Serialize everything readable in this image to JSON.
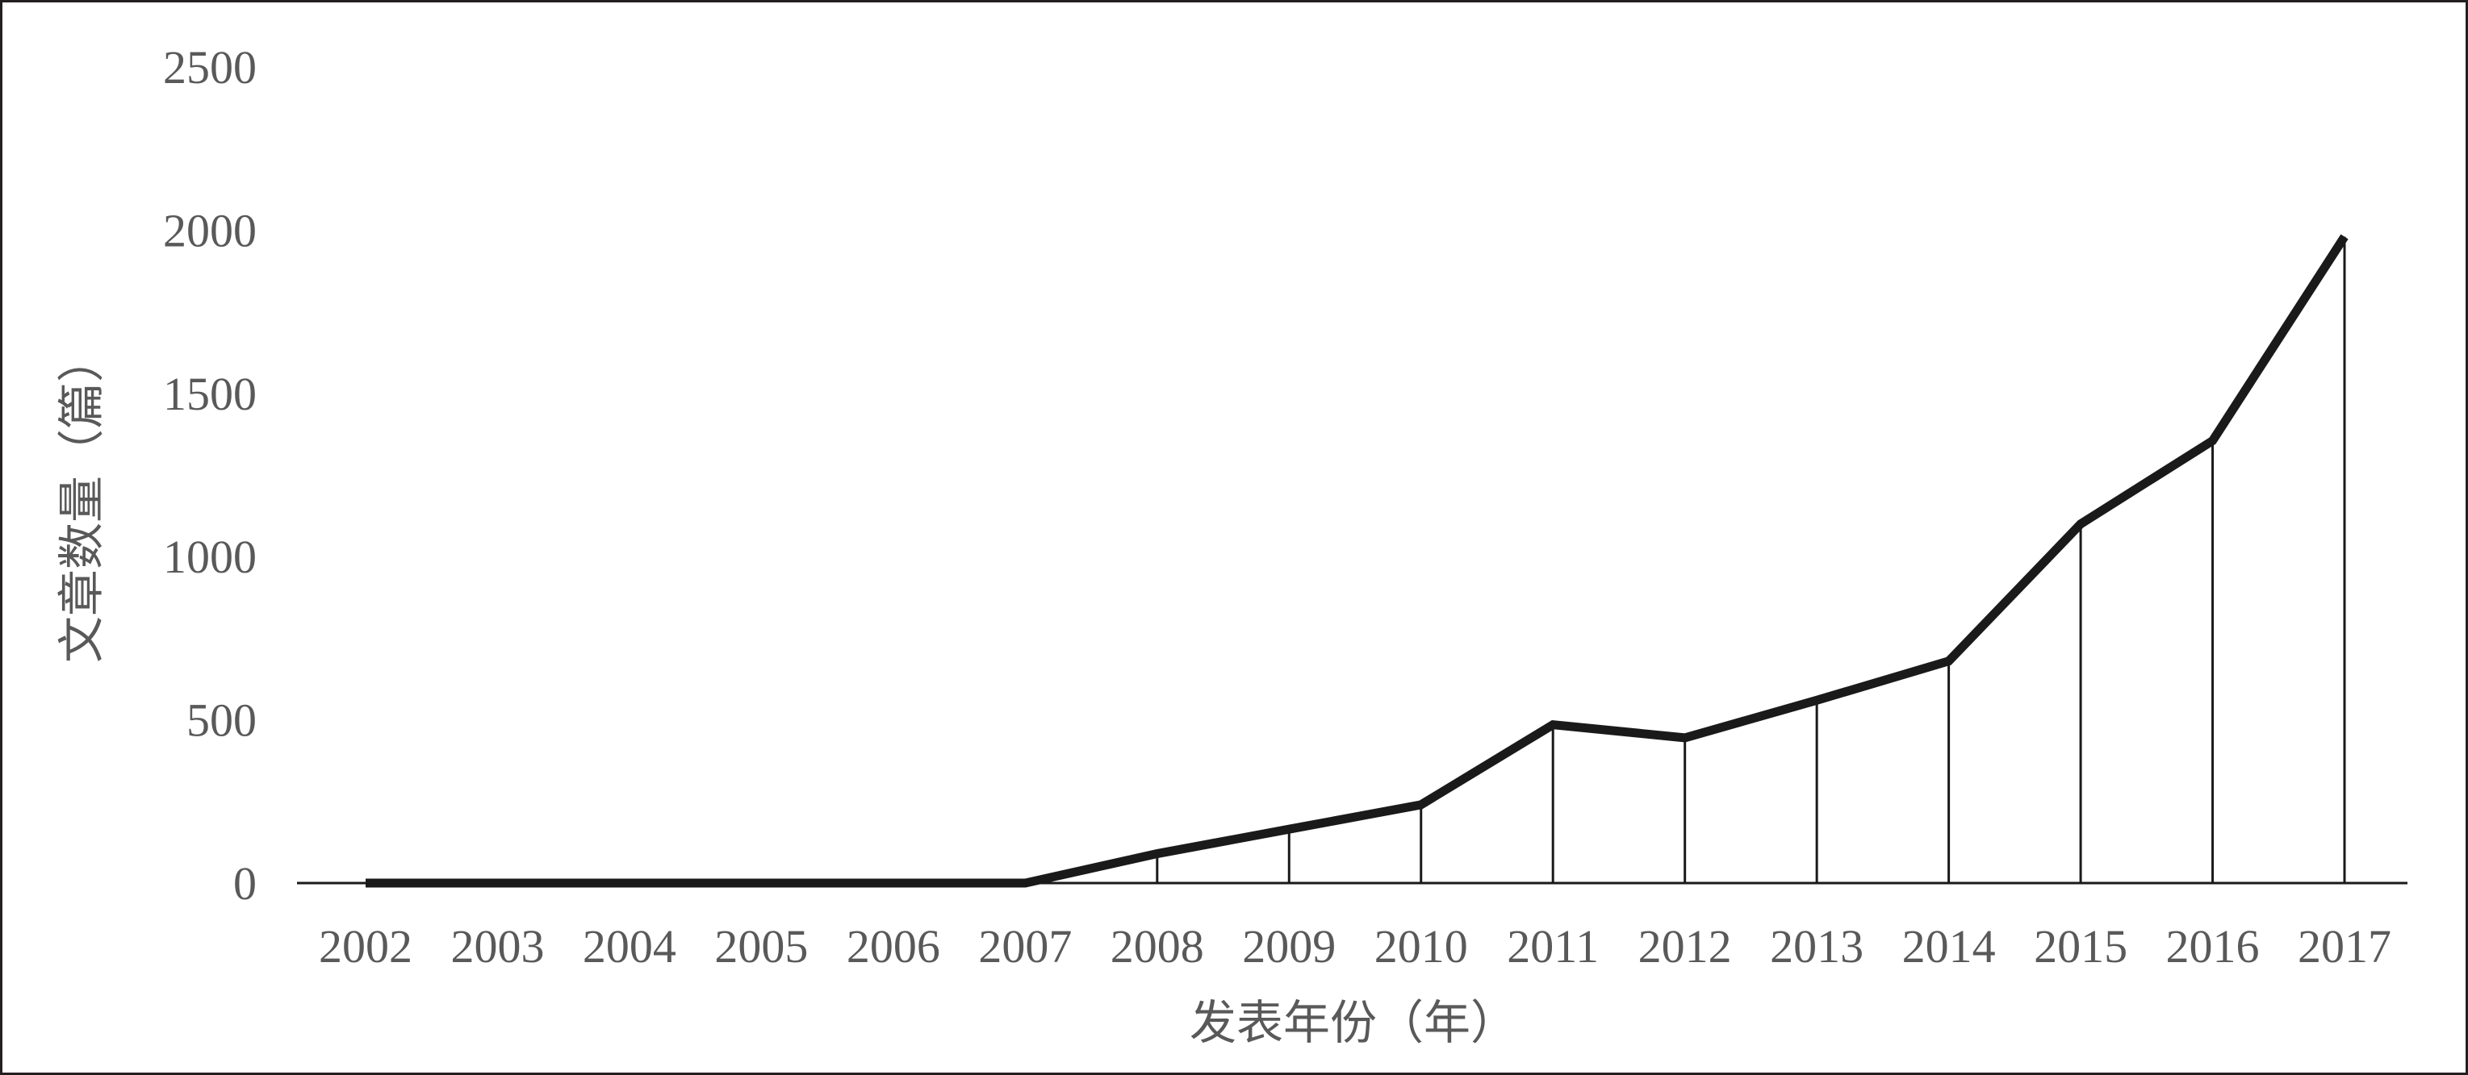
{
  "chart_data": {
    "type": "line",
    "title": "",
    "xlabel": "发表年份（年）",
    "ylabel": "文章数量（篇）",
    "categories": [
      "2002",
      "2003",
      "2004",
      "2005",
      "2006",
      "2007",
      "2008",
      "2009",
      "2010",
      "2011",
      "2012",
      "2013",
      "2014",
      "2015",
      "2016",
      "2017"
    ],
    "x_numeric": [
      2002,
      2003,
      2004,
      2005,
      2006,
      2007,
      2008,
      2009,
      2010,
      2011,
      2012,
      2013,
      2014,
      2015,
      2016,
      2017
    ],
    "values": [
      0,
      0,
      0,
      0,
      0,
      0,
      90,
      165,
      240,
      485,
      445,
      560,
      680,
      1100,
      1355,
      1980
    ],
    "ylim": [
      0,
      2500
    ],
    "yticks": [
      0,
      500,
      1000,
      1500,
      2000,
      2500
    ],
    "grid": false,
    "drop_lines": true,
    "legend": "none",
    "line_color": "#1a1a1a",
    "text_color": "#595959"
  }
}
